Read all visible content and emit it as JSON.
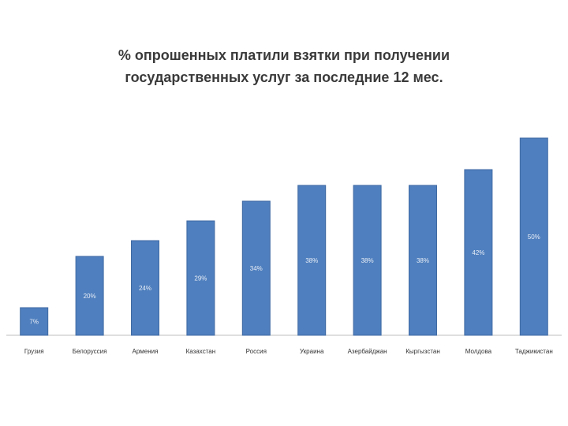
{
  "chart_data": {
    "type": "bar",
    "title_line1": "% опрошенных  платили взятки при получении",
    "title_line2": "государственных услуг за последние 12 мес.",
    "categories": [
      "Грузия",
      "Белоруссия",
      "Армения",
      "Казахстан",
      "Россия",
      "Украина",
      "Азербайджан",
      "Кыргызстан",
      "Молдова",
      "Таджикистан"
    ],
    "values": [
      7,
      20,
      24,
      29,
      34,
      38,
      38,
      38,
      42,
      50
    ],
    "value_labels": [
      "7%",
      "20%",
      "24%",
      "29%",
      "34%",
      "38%",
      "38%",
      "38%",
      "42%",
      "50%"
    ],
    "ylim": [
      0,
      55
    ],
    "grid": false,
    "colors": {
      "bar": "#4f7fbe",
      "bar_label": "#e9eef7"
    }
  }
}
